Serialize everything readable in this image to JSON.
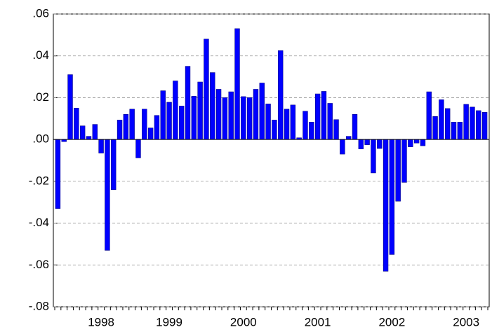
{
  "chart_data": {
    "type": "bar",
    "categories": [
      null,
      null,
      null,
      null,
      null,
      null,
      null,
      "1998",
      null,
      null,
      null,
      null,
      null,
      null,
      null,
      null,
      null,
      null,
      "1999",
      null,
      null,
      null,
      null,
      null,
      null,
      null,
      null,
      null,
      null,
      null,
      "2000",
      null,
      null,
      null,
      null,
      null,
      null,
      null,
      null,
      null,
      null,
      null,
      "2001",
      null,
      null,
      null,
      null,
      null,
      null,
      null,
      null,
      null,
      null,
      null,
      "2002",
      null,
      null,
      null,
      null,
      null,
      null,
      null,
      null,
      null,
      null,
      null,
      "2003",
      null,
      null,
      null
    ],
    "values": [
      -0.033,
      -0.001,
      0.031,
      0.015,
      0.0065,
      0.0015,
      0.0072,
      -0.0065,
      -0.053,
      -0.024,
      0.0093,
      0.012,
      0.0145,
      -0.0088,
      0.0145,
      0.0055,
      0.0115,
      0.0233,
      0.0178,
      0.028,
      0.016,
      0.035,
      0.0207,
      0.0275,
      0.048,
      0.032,
      0.024,
      0.02,
      0.0228,
      0.053,
      0.0205,
      0.02,
      0.024,
      0.027,
      0.017,
      0.0093,
      0.0425,
      0.0145,
      0.0165,
      0.0008,
      0.0135,
      0.0083,
      0.0218,
      0.023,
      0.0173,
      0.0095,
      -0.007,
      0.0015,
      0.012,
      -0.0045,
      -0.0025,
      -0.016,
      -0.0043,
      -0.063,
      -0.055,
      -0.0295,
      -0.0205,
      -0.0035,
      -0.0017,
      -0.003,
      0.0228,
      0.011,
      0.019,
      0.0148,
      0.0083,
      0.0083,
      0.0168,
      0.0155,
      0.0138,
      0.013
    ],
    "color": "#0000ff",
    "ylim": [
      -0.08,
      0.06
    ],
    "yticks": [
      {
        "value": -0.08,
        "label": "-.08"
      },
      {
        "value": -0.06,
        "label": "-.06"
      },
      {
        "value": -0.04,
        "label": "-.04"
      },
      {
        "value": -0.02,
        "label": "-.02"
      },
      {
        "value": 0,
        "label": ".00"
      },
      {
        "value": 0.02,
        "label": ".02"
      },
      {
        "value": 0.04,
        "label": ".04"
      },
      {
        "value": 0.06,
        "label": ".06"
      }
    ],
    "grid": true
  }
}
